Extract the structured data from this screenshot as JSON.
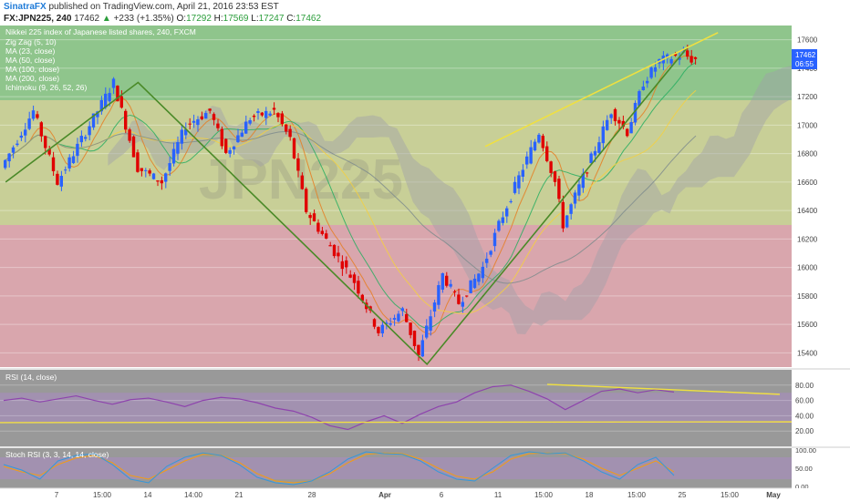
{
  "header": {
    "publisher": "SinatraFX",
    "published_text": "published on TradingView.com, April 21, 2016 23:53 EST",
    "symbol": "FX:JPN225, 240",
    "last": "17462",
    "change_arrow": "▲",
    "change": "+233 (+1.35%)",
    "o_label": "O:",
    "o": "17292",
    "h_label": "H:",
    "h": "17569",
    "l_label": "L:",
    "l": "17247",
    "c_label": "C:",
    "c": "17462"
  },
  "legend": {
    "title": "Nikkei 225 index of Japanese listed shares, 240, FXCM",
    "items": [
      "Zig Zag (5, 10)",
      "MA (23, close)",
      "MA (50, close)",
      "MA (100, close)",
      "MA (200, close)",
      "Ichimoku (9, 26, 52, 26)"
    ]
  },
  "price_badge": {
    "value": "17462",
    "countdown": "06:55"
  },
  "watermark": "JPN225",
  "rsi_title": "RSI (14, close)",
  "stoch_title": "Stoch RSI (3, 3, 14, 14, close)",
  "colors": {
    "bull": "#2962ff",
    "bear": "#e00000",
    "rsi": "#8e44ad",
    "trend": "#f0e040",
    "zigzag": "#4a8a28"
  },
  "chart_data": [
    {
      "type": "candlestick",
      "title": "Nikkei 225 index of Japanese listed shares, 240, FXCM",
      "ylim": [
        15300,
        17700
      ],
      "yticks": [
        15400,
        15600,
        15800,
        16000,
        16200,
        16400,
        16600,
        16800,
        17000,
        17200,
        17400,
        17600
      ],
      "x_axis_labels": [
        "7",
        "15:00",
        "14",
        "14:00",
        "21",
        "28",
        "Apr",
        "6",
        "11",
        "15:00",
        "18",
        "15:00",
        "25",
        "15:00",
        "May"
      ],
      "approx_path": [
        [
          0,
          16700
        ],
        [
          8,
          17100
        ],
        [
          14,
          16600
        ],
        [
          20,
          16900
        ],
        [
          28,
          17300
        ],
        [
          34,
          16700
        ],
        [
          40,
          16600
        ],
        [
          46,
          17000
        ],
        [
          52,
          17100
        ],
        [
          56,
          16800
        ],
        [
          62,
          17050
        ],
        [
          68,
          17100
        ],
        [
          72,
          16900
        ],
        [
          76,
          16400
        ],
        [
          82,
          16150
        ],
        [
          88,
          15900
        ],
        [
          94,
          15550
        ],
        [
          100,
          15700
        ],
        [
          104,
          15380
        ],
        [
          110,
          15950
        ],
        [
          114,
          15750
        ],
        [
          120,
          16000
        ],
        [
          124,
          16300
        ],
        [
          130,
          16700
        ],
        [
          134,
          16950
        ],
        [
          138,
          16600
        ],
        [
          140,
          16300
        ],
        [
          146,
          16700
        ],
        [
          152,
          17100
        ],
        [
          156,
          16950
        ],
        [
          160,
          17300
        ],
        [
          164,
          17450
        ],
        [
          170,
          17500
        ],
        [
          172,
          17462
        ]
      ],
      "zigzag": [
        [
          0,
          16600
        ],
        [
          33,
          17300
        ],
        [
          105,
          15320
        ],
        [
          170,
          17550
        ]
      ],
      "trendline": [
        [
          120,
          16850
        ],
        [
          178,
          17650
        ]
      ],
      "series": [
        {
          "name": "Ichimoku cloud"
        },
        {
          "name": "MA (23, close)"
        },
        {
          "name": "MA (50, close)"
        },
        {
          "name": "MA (100, close)"
        },
        {
          "name": "MA (200, close)"
        }
      ]
    },
    {
      "type": "line",
      "title": "RSI (14, close)",
      "ylim": [
        0,
        100
      ],
      "yticks": [
        20,
        40,
        60,
        80
      ],
      "values": [
        60,
        63,
        58,
        62,
        66,
        60,
        55,
        61,
        63,
        58,
        52,
        60,
        64,
        62,
        57,
        50,
        46,
        38,
        27,
        22,
        32,
        40,
        30,
        42,
        52,
        58,
        70,
        78,
        80,
        72,
        62,
        48,
        60,
        72,
        75,
        70,
        74,
        71
      ],
      "trendlines": [
        {
          "from": [
            0.0,
            81
          ],
          "to": [
            1.0,
            68
          ]
        },
        {
          "from": [
            0.0,
            31
          ],
          "to": [
            1.0,
            32
          ]
        }
      ]
    },
    {
      "type": "line",
      "title": "Stoch RSI (3, 3, 14, 14, close)",
      "ylim": [
        0,
        100
      ],
      "yticks": [
        0,
        50,
        100
      ],
      "k_values": [
        60,
        45,
        20,
        70,
        85,
        90,
        60,
        20,
        10,
        55,
        80,
        92,
        85,
        60,
        25,
        10,
        5,
        15,
        40,
        75,
        95,
        90,
        88,
        70,
        40,
        20,
        15,
        50,
        85,
        95,
        90,
        92,
        70,
        40,
        20,
        60,
        80,
        30
      ],
      "d_values": [
        55,
        40,
        30,
        60,
        78,
        85,
        65,
        30,
        20,
        45,
        70,
        88,
        86,
        66,
        35,
        15,
        10,
        15,
        35,
        65,
        88,
        92,
        90,
        75,
        50,
        28,
        20,
        40,
        75,
        90,
        92,
        90,
        75,
        50,
        30,
        50,
        70,
        40
      ]
    }
  ]
}
